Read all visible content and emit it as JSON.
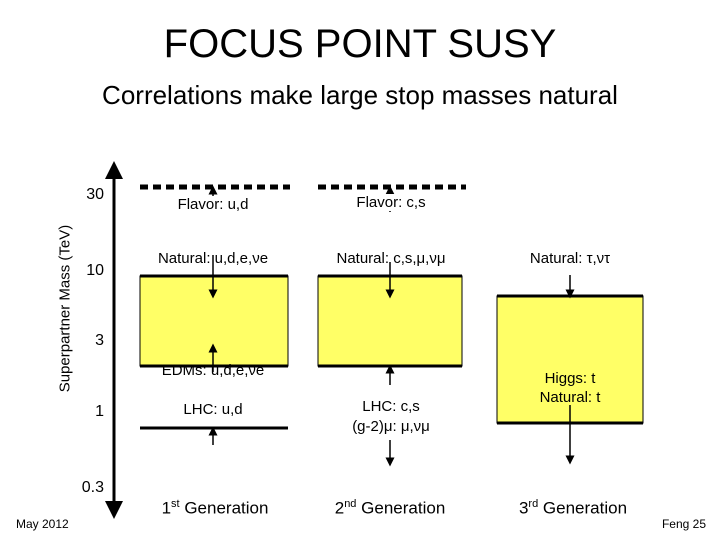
{
  "title": "FOCUS POINT SUSY",
  "subtitle": "Correlations make large stop masses natural",
  "y_axis": {
    "label": "Superpartner Mass (TeV)",
    "ticks": [
      "30",
      "10",
      "3",
      "1",
      "0.3"
    ]
  },
  "columns": [
    {
      "flavor": "Flavor: u,d",
      "natural": "Natural: u,d,e,νe",
      "edm": "EDMs: u,d,e,νe",
      "lhc": "LHC: u,d",
      "generation_num": "1",
      "generation_sup": "st",
      "generation_rest": " Generation"
    },
    {
      "flavor": "Flavor: c,s",
      "natural": "Natural: c,s,μ,νμ",
      "lhc_line1": "LHC: c,s",
      "lhc_line2": "(g-2)μ: μ,νμ",
      "generation_num": "2",
      "generation_sup": "nd",
      "generation_rest": " Generation"
    },
    {
      "natural": "Natural: τ,ντ",
      "higgs_line1": "Higgs: t",
      "higgs_line2": "Natural: t",
      "generation_num": "3",
      "generation_sup": "rd",
      "generation_rest": " Generation"
    }
  ],
  "footer": {
    "date": "May 2012",
    "page": "Feng 25"
  },
  "colors": {
    "box_fill": "#ffff66",
    "line": "#000000"
  }
}
